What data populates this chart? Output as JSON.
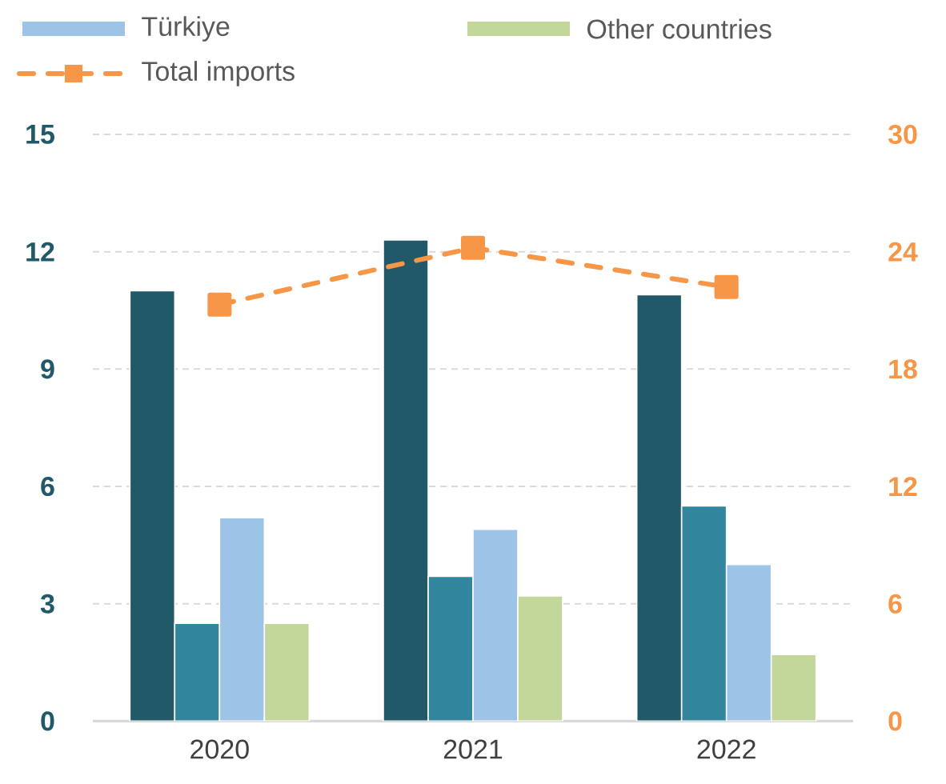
{
  "chart_data": {
    "type": "bar",
    "categories": [
      "2020",
      "2021",
      "2022"
    ],
    "series": [
      {
        "color": "#215968",
        "values": [
          11.0,
          12.3,
          10.9
        ]
      },
      {
        "color": "#31859c",
        "values": [
          2.5,
          3.7,
          5.5
        ]
      },
      {
        "name": "Türkiye",
        "color": "#9dc3e6",
        "values": [
          5.2,
          4.9,
          4.0
        ]
      },
      {
        "name": "Other countries",
        "color": "#c4d79b",
        "values": [
          2.5,
          3.2,
          1.7
        ]
      },
      {
        "name": "Total imports",
        "type": "line",
        "axis": "y2",
        "color": "#f79646",
        "marker": "square",
        "line_style": "dashed",
        "values": [
          21.3,
          24.2,
          22.2
        ]
      }
    ],
    "ylim": [
      0,
      15
    ],
    "yticks": [
      0,
      3,
      6,
      9,
      12,
      15
    ],
    "y2lim": [
      0,
      30
    ],
    "y2ticks": [
      0,
      6,
      12,
      18,
      24,
      30
    ],
    "grid": "y",
    "legend": "top"
  }
}
